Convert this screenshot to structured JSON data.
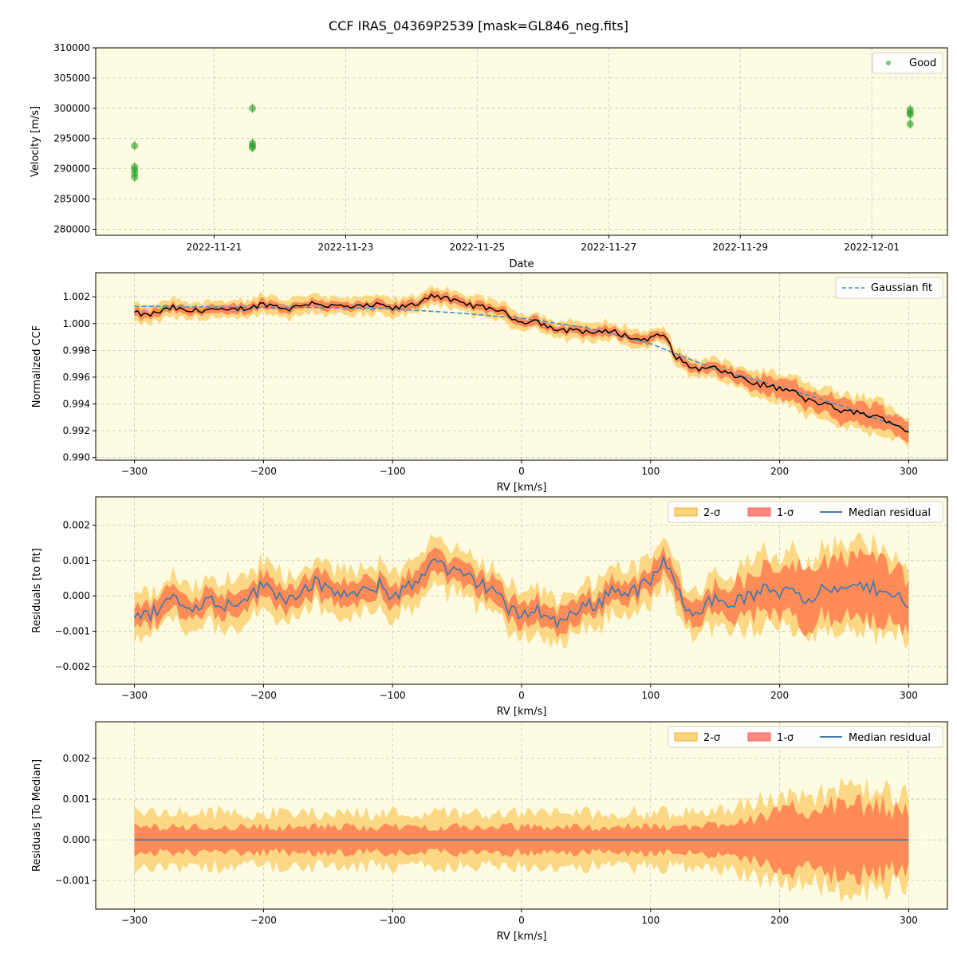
{
  "figure_title": "CCF IRAS_04369P2539 [mask=GL846_neg.fits]",
  "colors": {
    "panel_bg": "#fdfbe1",
    "grid": "#c8c8c8",
    "good_points": "#2ca02c",
    "sigma2_fill": "#fcd47a",
    "sigma1_fill": "#ff7f50",
    "ccf_line": "#000000",
    "fit_line": "#3f8fc7",
    "median_residual": "#4a78a8"
  },
  "chart_data": [
    {
      "type": "scatter",
      "xlabel": "Date",
      "ylabel": "Velocity [m/s]",
      "x_ticks": [
        "2022-11-21",
        "2022-11-23",
        "2022-11-25",
        "2022-11-27",
        "2022-11-29",
        "2022-12-01"
      ],
      "y_ticks": [
        "280000",
        "285000",
        "290000",
        "295000",
        "300000",
        "305000",
        "310000"
      ],
      "ylim": [
        279000,
        310000
      ],
      "grid": true,
      "legend_position": "top-right",
      "series": [
        {
          "name": "Good",
          "points": [
            {
              "x": "2022-11-19 19:00",
              "y": 293800
            },
            {
              "x": "2022-11-19 19:00",
              "y": 290300
            },
            {
              "x": "2022-11-19 19:00",
              "y": 289800
            },
            {
              "x": "2022-11-19 19:00",
              "y": 289200
            },
            {
              "x": "2022-11-19 19:00",
              "y": 288600
            },
            {
              "x": "2022-11-21 14:00",
              "y": 300000
            },
            {
              "x": "2022-11-21 14:00",
              "y": 294200
            },
            {
              "x": "2022-11-21 14:00",
              "y": 293800
            },
            {
              "x": "2022-11-21 14:00",
              "y": 293500
            },
            {
              "x": "2022-12-01 14:00",
              "y": 299800
            },
            {
              "x": "2022-12-01 14:00",
              "y": 299300
            },
            {
              "x": "2022-12-01 14:00",
              "y": 299000
            },
            {
              "x": "2022-12-01 14:00",
              "y": 297400
            }
          ]
        }
      ]
    },
    {
      "type": "line",
      "xlabel": "RV [km/s]",
      "ylabel": "Normalized CCF",
      "x_ticks": [
        "−300",
        "−200",
        "−100",
        "0",
        "100",
        "200",
        "300"
      ],
      "y_ticks": [
        "0.990",
        "0.992",
        "0.994",
        "0.996",
        "0.998",
        "1.000",
        "1.002"
      ],
      "xlim": [
        -330,
        330
      ],
      "ylim": [
        0.9898,
        1.0038
      ],
      "grid": true,
      "legend_position": "top-right",
      "series": [
        {
          "name": "Gaussian fit",
          "style": "dashed",
          "x": [
            -300,
            -250,
            -200,
            -150,
            -100,
            -50,
            0,
            50,
            100,
            150,
            200,
            250,
            300
          ],
          "y": [
            1.0013,
            1.00125,
            1.0012,
            1.0012,
            1.0011,
            1.0008,
            1.0004,
            0.9997,
            0.9985,
            0.9966,
            0.9953,
            0.9938,
            0.992
          ]
        },
        {
          "name": "CCF",
          "x": [
            -300,
            -290,
            -280,
            -270,
            -260,
            -250,
            -240,
            -230,
            -220,
            -210,
            -200,
            -190,
            -180,
            -170,
            -160,
            -150,
            -140,
            -130,
            -120,
            -110,
            -100,
            -90,
            -80,
            -70,
            -60,
            -50,
            -40,
            -30,
            -20,
            -10,
            0,
            10,
            20,
            30,
            40,
            50,
            60,
            70,
            80,
            90,
            100,
            110,
            120,
            130,
            140,
            150,
            160,
            170,
            180,
            190,
            200,
            210,
            220,
            230,
            240,
            250,
            260,
            270,
            280,
            290,
            300
          ],
          "y": [
            1.0008,
            1.0006,
            1.0009,
            1.0012,
            1.0009,
            1.001,
            1.0011,
            1.0009,
            1.0011,
            1.0012,
            1.0015,
            1.0013,
            1.0011,
            1.0014,
            1.0016,
            1.0013,
            1.0013,
            1.0012,
            1.0013,
            1.0014,
            1.0011,
            1.0013,
            1.0015,
            1.0022,
            1.0019,
            1.0016,
            1.0014,
            1.0012,
            1.0011,
            1.0006,
            1.0001,
            1.0003,
            0.9998,
            0.9994,
            0.9996,
            0.9994,
            0.9993,
            0.9995,
            0.9991,
            0.9988,
            0.9989,
            0.9992,
            0.9975,
            0.9968,
            0.9966,
            0.9967,
            0.9962,
            0.996,
            0.9955,
            0.9954,
            0.9951,
            0.995,
            0.9943,
            0.9941,
            0.9938,
            0.9934,
            0.9934,
            0.9931,
            0.9929,
            0.9925,
            0.9919
          ]
        }
      ],
      "bands": {
        "sigma1_halfwidth": [
          0.0003,
          0.0003,
          0.0003,
          0.0003,
          0.0003,
          0.0003,
          0.0003,
          0.0003,
          0.0003,
          0.0003,
          0.0003,
          0.0003,
          0.0003,
          0.0003,
          0.0003,
          0.0003,
          0.0003,
          0.0003,
          0.0003,
          0.0003,
          0.0003,
          0.0003,
          0.0003,
          0.0003,
          0.0003,
          0.0003,
          0.0003,
          0.0003,
          0.0003,
          0.0003,
          0.0003,
          0.0003,
          0.0003,
          0.0003,
          0.0003,
          0.0003,
          0.0003,
          0.0003,
          0.0003,
          0.0003,
          0.0003,
          0.0003,
          0.0003,
          0.0003,
          0.0003,
          0.0004,
          0.0004,
          0.0005,
          0.0005,
          0.0006,
          0.0006,
          0.0007,
          0.0007,
          0.0007,
          0.0008,
          0.0008,
          0.0008,
          0.0008,
          0.0008,
          0.0007,
          0.0007
        ],
        "sigma2_halfwidth": [
          0.0006,
          0.0006,
          0.0006,
          0.0006,
          0.0006,
          0.0006,
          0.0006,
          0.0006,
          0.0006,
          0.0006,
          0.0006,
          0.0006,
          0.0006,
          0.0006,
          0.0006,
          0.0006,
          0.0006,
          0.0006,
          0.0006,
          0.0006,
          0.0006,
          0.0006,
          0.0006,
          0.0006,
          0.0006,
          0.0006,
          0.0006,
          0.0006,
          0.0006,
          0.0006,
          0.0006,
          0.0006,
          0.0006,
          0.0006,
          0.0006,
          0.0006,
          0.0006,
          0.0006,
          0.0006,
          0.0006,
          0.0006,
          0.0006,
          0.0006,
          0.0006,
          0.0006,
          0.0007,
          0.0007,
          0.0008,
          0.0008,
          0.0009,
          0.0009,
          0.001,
          0.001,
          0.001,
          0.0011,
          0.0011,
          0.0011,
          0.0011,
          0.0011,
          0.001,
          0.001
        ]
      }
    },
    {
      "type": "line",
      "xlabel": "RV [km/s]",
      "ylabel": "Residuals [to fit]",
      "x_ticks": [
        "−300",
        "−200",
        "−100",
        "0",
        "100",
        "200",
        "300"
      ],
      "y_ticks": [
        "−0.002",
        "−0.001",
        "0.000",
        "0.001",
        "0.002"
      ],
      "xlim": [
        -330,
        330
      ],
      "ylim": [
        -0.0025,
        0.0028
      ],
      "grid": true,
      "legend_position": "top-right",
      "legend_entries": [
        "2-σ",
        "1-σ",
        "Median residual"
      ],
      "series": [
        {
          "name": "Median residual",
          "x": [
            -300,
            -290,
            -280,
            -270,
            -260,
            -250,
            -240,
            -230,
            -220,
            -210,
            -200,
            -190,
            -180,
            -170,
            -160,
            -150,
            -140,
            -130,
            -120,
            -110,
            -100,
            -90,
            -80,
            -70,
            -60,
            -50,
            -40,
            -30,
            -20,
            -10,
            0,
            10,
            20,
            30,
            40,
            50,
            60,
            70,
            80,
            90,
            100,
            110,
            120,
            130,
            140,
            150,
            160,
            170,
            180,
            190,
            200,
            210,
            220,
            230,
            240,
            250,
            260,
            270,
            280,
            290,
            300
          ],
          "y": [
            -0.0005,
            -0.0006,
            -0.0003,
            0.0,
            -0.0004,
            -0.0002,
            -0.0001,
            -0.0003,
            -0.0001,
            0.0,
            0.0003,
            0.0001,
            -0.0001,
            0.0002,
            0.0004,
            0.0001,
            0.0001,
            0.0,
            0.0001,
            0.0003,
            0.0,
            0.0002,
            0.0004,
            0.0011,
            0.0008,
            0.0006,
            0.0005,
            0.0003,
            0.0002,
            -0.0004,
            -0.0006,
            -0.0003,
            -0.0006,
            -0.0008,
            -0.0004,
            -0.0003,
            -0.0002,
            0.0002,
            0.0001,
            0.0002,
            0.0004,
            0.001,
            0.0002,
            -0.0004,
            -0.0003,
            -0.0001,
            -0.0002,
            -0.0001,
            0.0,
            0.0002,
            0.0001,
            0.0003,
            -0.0001,
            0.0001,
            0.0002,
            0.0001,
            0.0003,
            0.0002,
            0.0002,
            0.0001,
            -0.0004
          ]
        }
      ],
      "bands": {
        "sigma1_halfwidth": [
          0.0003,
          0.0003,
          0.0003,
          0.0003,
          0.0003,
          0.0003,
          0.0003,
          0.0003,
          0.0003,
          0.0003,
          0.0003,
          0.0003,
          0.0003,
          0.0003,
          0.0003,
          0.0003,
          0.0003,
          0.0003,
          0.0003,
          0.0003,
          0.0003,
          0.0003,
          0.0003,
          0.0003,
          0.0003,
          0.0003,
          0.0003,
          0.0003,
          0.0003,
          0.0003,
          0.0003,
          0.0003,
          0.0003,
          0.0003,
          0.0003,
          0.0003,
          0.0003,
          0.0003,
          0.0003,
          0.0003,
          0.0003,
          0.0003,
          0.0003,
          0.0003,
          0.0003,
          0.0004,
          0.0004,
          0.0005,
          0.0005,
          0.0006,
          0.0006,
          0.0007,
          0.0007,
          0.0007,
          0.0008,
          0.0008,
          0.0008,
          0.0008,
          0.0008,
          0.0007,
          0.0007
        ],
        "sigma2_halfwidth": [
          0.0006,
          0.0006,
          0.0006,
          0.0006,
          0.0006,
          0.0006,
          0.0006,
          0.0006,
          0.0006,
          0.0006,
          0.0006,
          0.0006,
          0.0006,
          0.0006,
          0.0006,
          0.0006,
          0.0006,
          0.0006,
          0.0006,
          0.0006,
          0.0006,
          0.0006,
          0.0006,
          0.0006,
          0.0006,
          0.0006,
          0.0006,
          0.0006,
          0.0006,
          0.0006,
          0.0006,
          0.0006,
          0.0006,
          0.0006,
          0.0006,
          0.0006,
          0.0006,
          0.0006,
          0.0006,
          0.0006,
          0.0006,
          0.0006,
          0.0006,
          0.0006,
          0.0006,
          0.0007,
          0.0007,
          0.0008,
          0.0008,
          0.0009,
          0.0009,
          0.001,
          0.001,
          0.001,
          0.0011,
          0.0011,
          0.0011,
          0.0011,
          0.0011,
          0.001,
          0.001
        ]
      }
    },
    {
      "type": "line",
      "xlabel": "RV [km/s]",
      "ylabel": "Residuals [To Median]",
      "x_ticks": [
        "−300",
        "−200",
        "−100",
        "0",
        "100",
        "200",
        "300"
      ],
      "y_ticks": [
        "−0.001",
        "0.000",
        "0.001",
        "0.002"
      ],
      "xlim": [
        -330,
        330
      ],
      "ylim": [
        -0.0017,
        0.0029
      ],
      "grid": true,
      "legend_position": "top-right",
      "legend_entries": [
        "2-σ",
        "1-σ",
        "Median residual"
      ],
      "series": [
        {
          "name": "Median residual",
          "x": [
            -300,
            300
          ],
          "y": [
            0.0,
            0.0
          ]
        }
      ],
      "bands": {
        "sigma1_halfwidth": [
          0.0003,
          0.0003,
          0.0003,
          0.0003,
          0.0003,
          0.0003,
          0.0003,
          0.0003,
          0.0003,
          0.0003,
          0.0003,
          0.0003,
          0.0003,
          0.0003,
          0.0003,
          0.0003,
          0.0003,
          0.0003,
          0.0003,
          0.0003,
          0.0003,
          0.0003,
          0.0003,
          0.0003,
          0.0003,
          0.0003,
          0.0003,
          0.0003,
          0.0003,
          0.0003,
          0.0003,
          0.0003,
          0.0003,
          0.0003,
          0.0003,
          0.0003,
          0.0003,
          0.0003,
          0.0003,
          0.0003,
          0.0003,
          0.0003,
          0.0003,
          0.0003,
          0.0003,
          0.0004,
          0.0004,
          0.0005,
          0.0005,
          0.0006,
          0.0006,
          0.0007,
          0.0007,
          0.0007,
          0.0008,
          0.0008,
          0.0008,
          0.0008,
          0.0008,
          0.0007,
          0.0007
        ],
        "sigma2_halfwidth": [
          0.0006,
          0.0006,
          0.0006,
          0.0006,
          0.0006,
          0.0006,
          0.0006,
          0.0006,
          0.0006,
          0.0006,
          0.0006,
          0.0006,
          0.0006,
          0.0006,
          0.0006,
          0.0006,
          0.0006,
          0.0006,
          0.0006,
          0.0006,
          0.0006,
          0.0006,
          0.0006,
          0.0006,
          0.0006,
          0.0006,
          0.0006,
          0.0006,
          0.0006,
          0.0006,
          0.0006,
          0.0006,
          0.0006,
          0.0006,
          0.0006,
          0.0006,
          0.0006,
          0.0006,
          0.0006,
          0.0006,
          0.0006,
          0.0006,
          0.0006,
          0.0006,
          0.0006,
          0.0007,
          0.0007,
          0.0008,
          0.0008,
          0.0009,
          0.0009,
          0.001,
          0.001,
          0.001,
          0.0011,
          0.0011,
          0.0011,
          0.0011,
          0.0011,
          0.001,
          0.001
        ]
      }
    }
  ]
}
